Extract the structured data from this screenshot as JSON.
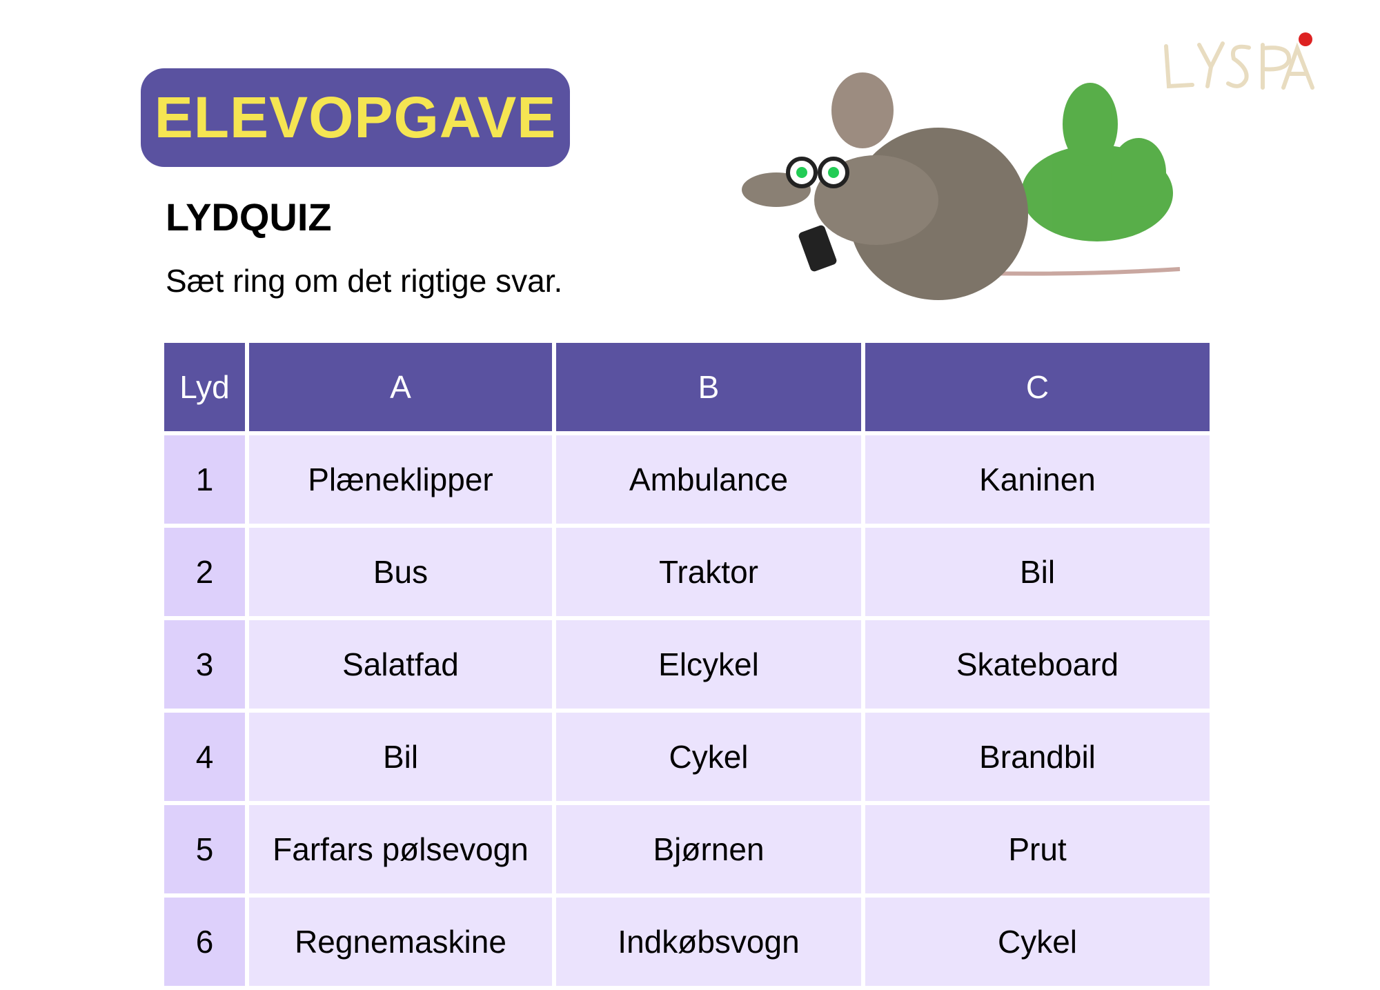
{
  "header": {
    "badge": "ELEVOPGAVE",
    "title": "LYDQUIZ",
    "instruction": "Sæt ring om det rigtige svar."
  },
  "logo": {
    "text": "LYS PÅ"
  },
  "colors": {
    "accent": "#5a52a0",
    "badge_text": "#f5e552",
    "cell": "#ebe3fd",
    "lyd_cell": "#ddd0fb"
  },
  "table": {
    "headers": [
      "Lyd",
      "A",
      "B",
      "C"
    ],
    "rows": [
      [
        "1",
        "Plæneklipper",
        "Ambulance",
        "Kaninen"
      ],
      [
        "2",
        "Bus",
        "Traktor",
        "Bil"
      ],
      [
        "3",
        "Salatfad",
        "Elcykel",
        "Skateboard"
      ],
      [
        "4",
        "Bil",
        "Cykel",
        "Brandbil"
      ],
      [
        "5",
        "Farfars pølsevogn",
        "Bjørnen",
        "Prut"
      ],
      [
        "6",
        "Regnemaskine",
        "Indkøbsvogn",
        "Cykel"
      ]
    ]
  }
}
